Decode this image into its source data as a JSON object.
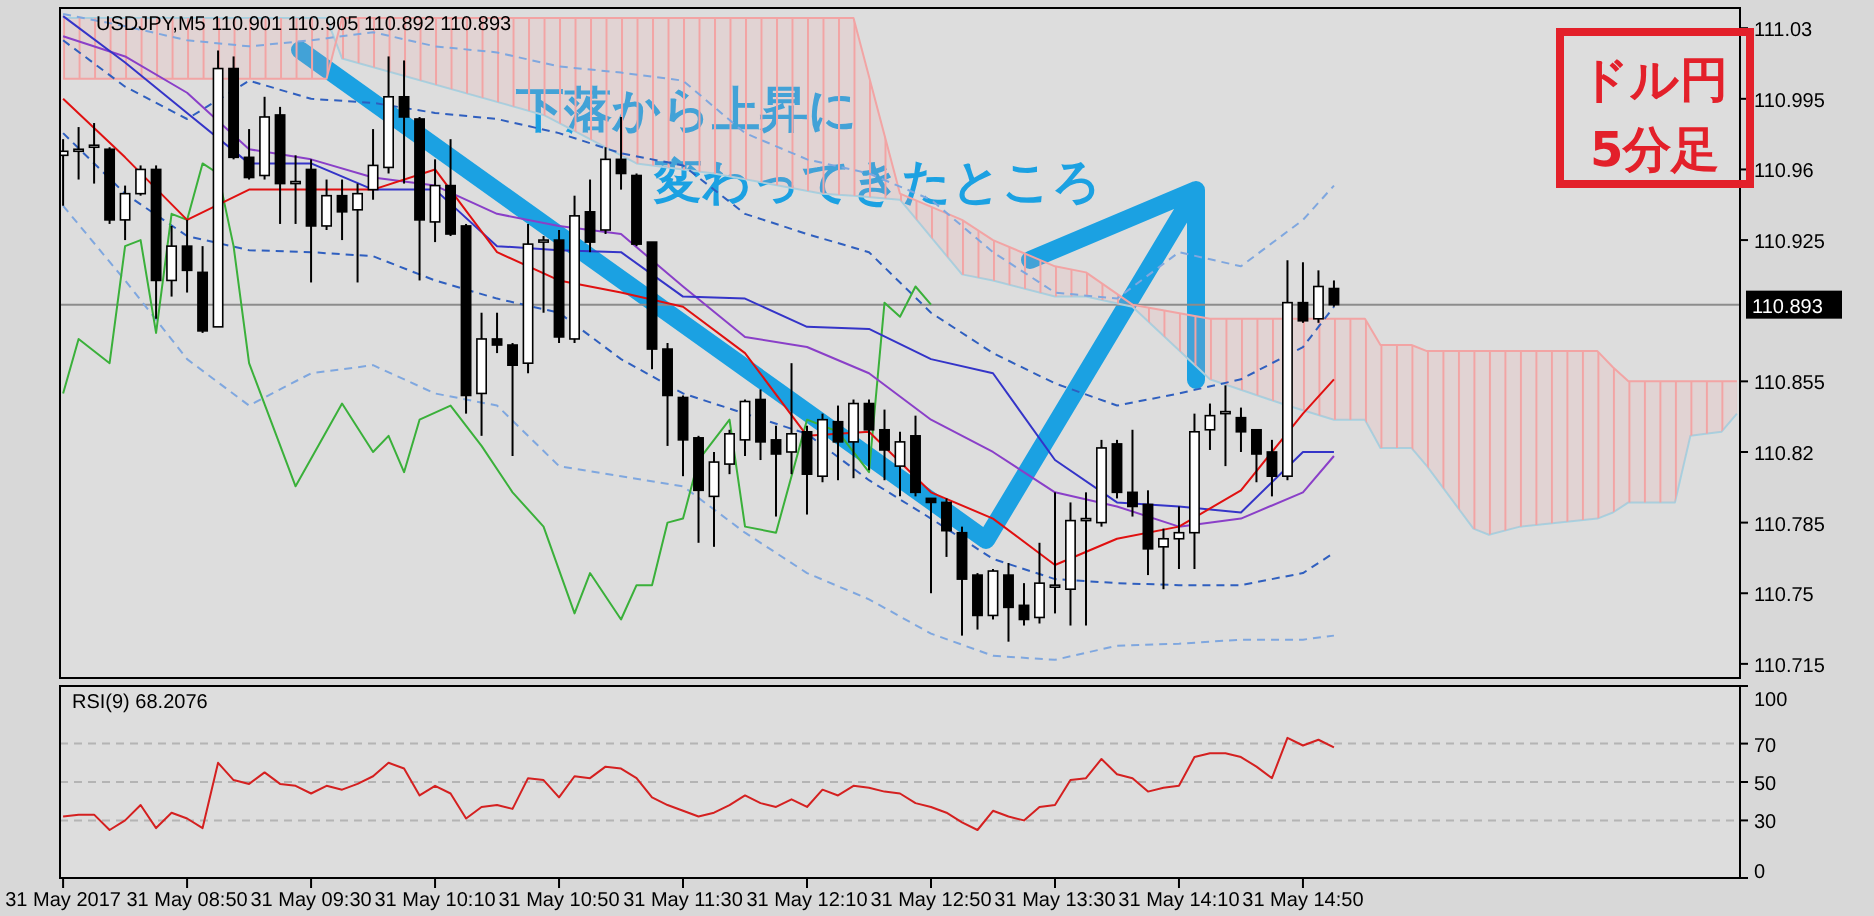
{
  "chart_data": [
    {
      "type": "candlestick",
      "title": "USDJPY,M5  110.901 110.905 110.892 110.893",
      "x": [
        "2017-05-31T08:10",
        "2017-05-31T08:15",
        "2017-05-31T08:20",
        "2017-05-31T08:25",
        "2017-05-31T08:30",
        "2017-05-31T08:35",
        "2017-05-31T08:40",
        "2017-05-31T08:45",
        "2017-05-31T08:50",
        "2017-05-31T08:55",
        "2017-05-31T09:00",
        "2017-05-31T09:05",
        "2017-05-31T09:10",
        "2017-05-31T09:15",
        "2017-05-31T09:20",
        "2017-05-31T09:25",
        "2017-05-31T09:30",
        "2017-05-31T09:35",
        "2017-05-31T09:40",
        "2017-05-31T09:45",
        "2017-05-31T09:50",
        "2017-05-31T09:55",
        "2017-05-31T10:00",
        "2017-05-31T10:05",
        "2017-05-31T10:10",
        "2017-05-31T10:15",
        "2017-05-31T10:20",
        "2017-05-31T10:25",
        "2017-05-31T10:30",
        "2017-05-31T10:35",
        "2017-05-31T10:40",
        "2017-05-31T10:45",
        "2017-05-31T10:50",
        "2017-05-31T10:55",
        "2017-05-31T11:00",
        "2017-05-31T11:05",
        "2017-05-31T11:10",
        "2017-05-31T11:15",
        "2017-05-31T11:20",
        "2017-05-31T11:25",
        "2017-05-31T11:30",
        "2017-05-31T11:35",
        "2017-05-31T11:40",
        "2017-05-31T11:45",
        "2017-05-31T11:50",
        "2017-05-31T11:55",
        "2017-05-31T12:00",
        "2017-05-31T12:05",
        "2017-05-31T12:10",
        "2017-05-31T12:15",
        "2017-05-31T12:20",
        "2017-05-31T12:25",
        "2017-05-31T12:30",
        "2017-05-31T12:35",
        "2017-05-31T12:40",
        "2017-05-31T12:45",
        "2017-05-31T12:50",
        "2017-05-31T12:55",
        "2017-05-31T13:00",
        "2017-05-31T13:05",
        "2017-05-31T13:10",
        "2017-05-31T13:15",
        "2017-05-31T13:20",
        "2017-05-31T13:25",
        "2017-05-31T13:30",
        "2017-05-31T13:35",
        "2017-05-31T13:40",
        "2017-05-31T13:45",
        "2017-05-31T13:50",
        "2017-05-31T13:55",
        "2017-05-31T14:00",
        "2017-05-31T14:05",
        "2017-05-31T14:10",
        "2017-05-31T14:15",
        "2017-05-31T14:20",
        "2017-05-31T14:25",
        "2017-05-31T14:30",
        "2017-05-31T14:35",
        "2017-05-31T14:40",
        "2017-05-31T14:45",
        "2017-05-31T14:50",
        "2017-05-31T14:55",
        "2017-05-31T15:00"
      ],
      "ohlc": [
        [
          110.967,
          110.975,
          110.942,
          110.969
        ],
        [
          110.969,
          110.981,
          110.955,
          110.97
        ],
        [
          110.971,
          110.983,
          110.953,
          110.972
        ],
        [
          110.97,
          110.971,
          110.933,
          110.935
        ],
        [
          110.935,
          110.952,
          110.925,
          110.948
        ],
        [
          110.948,
          110.962,
          110.947,
          110.96
        ],
        [
          110.96,
          110.962,
          110.886,
          110.905
        ],
        [
          110.905,
          110.932,
          110.897,
          110.922
        ],
        [
          110.922,
          110.935,
          110.899,
          110.91
        ],
        [
          110.909,
          110.922,
          110.879,
          110.88
        ],
        [
          110.882,
          111.019,
          110.882,
          111.01
        ],
        [
          111.01,
          111.016,
          110.965,
          110.966
        ],
        [
          110.966,
          110.98,
          110.955,
          110.956
        ],
        [
          110.957,
          110.996,
          110.955,
          110.986
        ],
        [
          110.987,
          110.991,
          110.933,
          110.953
        ],
        [
          110.953,
          110.967,
          110.933,
          110.954
        ],
        [
          110.96,
          110.965,
          110.904,
          110.932
        ],
        [
          110.932,
          110.955,
          110.93,
          110.947
        ],
        [
          110.947,
          110.955,
          110.925,
          110.939
        ],
        [
          110.94,
          110.953,
          110.904,
          110.948
        ],
        [
          110.95,
          110.98,
          110.945,
          110.962
        ],
        [
          110.961,
          111.016,
          110.958,
          110.996
        ],
        [
          110.996,
          111.014,
          110.953,
          110.986
        ],
        [
          110.985,
          110.986,
          110.905,
          110.935
        ],
        [
          110.934,
          110.965,
          110.924,
          110.952
        ],
        [
          110.952,
          110.975,
          110.927,
          110.928
        ],
        [
          110.932,
          110.933,
          110.839,
          110.848
        ],
        [
          110.849,
          110.889,
          110.828,
          110.876
        ],
        [
          110.876,
          110.889,
          110.869,
          110.873
        ],
        [
          110.873,
          110.874,
          110.818,
          110.863
        ],
        [
          110.864,
          110.933,
          110.859,
          110.923
        ],
        [
          110.924,
          110.927,
          110.889,
          110.925
        ],
        [
          110.925,
          110.93,
          110.874,
          110.877
        ],
        [
          110.876,
          110.947,
          110.874,
          110.937
        ],
        [
          110.939,
          110.955,
          110.919,
          110.924
        ],
        [
          110.93,
          110.971,
          110.928,
          110.965
        ],
        [
          110.965,
          110.986,
          110.95,
          110.958
        ],
        [
          110.957,
          110.958,
          110.922,
          110.923
        ],
        [
          110.924,
          110.924,
          110.861,
          110.871
        ],
        [
          110.871,
          110.874,
          110.823,
          110.848
        ],
        [
          110.847,
          110.848,
          110.808,
          110.826
        ],
        [
          110.827,
          110.828,
          110.775,
          110.801
        ],
        [
          110.798,
          110.82,
          110.773,
          110.815
        ],
        [
          110.814,
          110.831,
          110.809,
          110.829
        ],
        [
          110.826,
          110.846,
          110.818,
          110.845
        ],
        [
          110.846,
          110.851,
          110.816,
          110.825
        ],
        [
          110.826,
          110.833,
          110.788,
          110.819
        ],
        [
          110.82,
          110.864,
          110.809,
          110.829
        ],
        [
          110.83,
          110.833,
          110.789,
          110.809
        ],
        [
          110.808,
          110.839,
          110.805,
          110.836
        ],
        [
          110.835,
          110.843,
          110.806,
          110.825
        ],
        [
          110.825,
          110.846,
          110.807,
          110.844
        ],
        [
          110.844,
          110.846,
          110.811,
          110.831
        ],
        [
          110.831,
          110.841,
          110.806,
          110.821
        ],
        [
          110.813,
          110.83,
          110.798,
          110.825
        ],
        [
          110.828,
          110.838,
          110.798,
          110.8
        ],
        [
          110.797,
          110.797,
          110.75,
          110.795
        ],
        [
          110.795,
          110.797,
          110.768,
          110.781
        ],
        [
          110.78,
          110.783,
          110.729,
          110.757
        ],
        [
          110.759,
          110.76,
          110.732,
          110.739
        ],
        [
          110.739,
          110.762,
          110.737,
          110.761
        ],
        [
          110.759,
          110.765,
          110.726,
          110.743
        ],
        [
          110.744,
          110.755,
          110.734,
          110.737
        ],
        [
          110.738,
          110.775,
          110.735,
          110.755
        ],
        [
          110.753,
          110.8,
          110.74,
          110.754
        ],
        [
          110.752,
          110.795,
          110.734,
          110.786
        ],
        [
          110.786,
          110.8,
          110.734,
          110.787
        ],
        [
          110.785,
          110.826,
          110.783,
          110.822
        ],
        [
          110.824,
          110.826,
          110.797,
          110.8
        ],
        [
          110.8,
          110.831,
          110.788,
          110.793
        ],
        [
          110.794,
          110.801,
          110.759,
          110.772
        ],
        [
          110.773,
          110.782,
          110.752,
          110.777
        ],
        [
          110.777,
          110.793,
          110.762,
          110.78
        ],
        [
          110.78,
          110.839,
          110.762,
          110.83
        ],
        [
          110.831,
          110.844,
          110.821,
          110.838
        ],
        [
          110.839,
          110.853,
          110.813,
          110.84
        ],
        [
          110.837,
          110.842,
          110.82,
          110.83
        ],
        [
          110.831,
          110.831,
          110.805,
          110.819
        ],
        [
          110.82,
          110.826,
          110.798,
          110.808
        ],
        [
          110.808,
          110.915,
          110.806,
          110.894
        ],
        [
          110.894,
          110.914,
          110.884,
          110.885
        ],
        [
          110.886,
          110.91,
          110.884,
          110.902
        ],
        [
          110.901,
          110.905,
          110.892,
          110.893
        ]
      ],
      "series": [
        {
          "type": "line",
          "color": "#a4d2e2",
          "line_style": "solid",
          "x": [
            "2017-05-31T08:10",
            "2017-05-31T09:35",
            "2017-05-31T09:40",
            "2017-05-31T10:45",
            "2017-05-31T11:15",
            "2017-05-31T11:40",
            "2017-05-31T12:15",
            "2017-05-31T12:25",
            "2017-05-31T12:40",
            "2017-05-31T13:00",
            "2017-05-31T13:10",
            "2017-05-31T13:30",
            "2017-05-31T13:40",
            "2017-05-31T13:55",
            "2017-05-31T14:20",
            "2017-05-31T14:45",
            "2017-05-31T15:00",
            "2017-05-31T15:10",
            "2017-05-31T15:15",
            "2017-05-31T15:25",
            "2017-05-31T15:30",
            "2017-05-31T15:45",
            "2017-05-31T15:50",
            "2017-05-31T16:00",
            "2017-05-31T16:25",
            "2017-05-31T16:30",
            "2017-05-31T16:35",
            "2017-05-31T16:50",
            "2017-05-31T16:55",
            "2017-05-31T17:05",
            "2017-05-31T17:10"
          ],
          "values": [
            111.035,
            111.035,
            111.015,
            110.987,
            110.963,
            110.958,
            110.948,
            110.947,
            110.945,
            110.908,
            110.905,
            110.897,
            110.897,
            110.892,
            110.856,
            110.843,
            110.836,
            110.836,
            110.822,
            110.822,
            110.813,
            110.782,
            110.779,
            110.783,
            110.787,
            110.79,
            110.795,
            110.795,
            110.828,
            110.83,
            110.839
          ]
        },
        {
          "type": "line",
          "color": "#f2a4a4",
          "line_style": "solid",
          "x": [
            "2017-05-31T08:10",
            "2017-05-31T09:35",
            "2017-05-31T09:40",
            "2017-05-31T10:45",
            "2017-05-31T11:15",
            "2017-05-31T11:40",
            "2017-05-31T12:15",
            "2017-05-31T12:25",
            "2017-05-31T12:40",
            "2017-05-31T13:00",
            "2017-05-31T13:10",
            "2017-05-31T13:30",
            "2017-05-31T13:40",
            "2017-05-31T13:55",
            "2017-05-31T14:20",
            "2017-05-31T14:45",
            "2017-05-31T15:00",
            "2017-05-31T15:10",
            "2017-05-31T15:15",
            "2017-05-31T15:25",
            "2017-05-31T15:30",
            "2017-05-31T15:45",
            "2017-05-31T15:50",
            "2017-05-31T16:00",
            "2017-05-31T16:25",
            "2017-05-31T16:30",
            "2017-05-31T16:35",
            "2017-05-31T16:50",
            "2017-05-31T16:55",
            "2017-05-31T17:05",
            "2017-05-31T17:10"
          ],
          "values": [
            111.005,
            111.005,
            111.035,
            111.035,
            111.035,
            111.035,
            111.035,
            111.035,
            110.948,
            110.935,
            110.925,
            110.912,
            110.909,
            110.893,
            110.886,
            110.886,
            110.886,
            110.886,
            110.873,
            110.873,
            110.87,
            110.87,
            110.87,
            110.87,
            110.87,
            110.862,
            110.855,
            110.855,
            110.855,
            110.855,
            110.855
          ],
          "upper": [
            111.005,
            111.005,
            111.035,
            111.035,
            111.035,
            111.035,
            111.035,
            111.035,
            110.948,
            110.935,
            110.925,
            110.912,
            110.909,
            110.893,
            110.886,
            110.886,
            110.886,
            110.886,
            110.873,
            110.873,
            110.87,
            110.87,
            110.87,
            110.87,
            110.87,
            110.862,
            110.855,
            110.855,
            110.855,
            110.855,
            110.855
          ],
          "lower": [
            111.035,
            111.035,
            111.015,
            110.987,
            110.963,
            110.958,
            110.948,
            110.947,
            110.945,
            110.908,
            110.905,
            110.897,
            110.897,
            110.892,
            110.856,
            110.843,
            110.836,
            110.836,
            110.822,
            110.822,
            110.813,
            110.782,
            110.779,
            110.783,
            110.787,
            110.79,
            110.795,
            110.795,
            110.828,
            110.83,
            110.839
          ]
        },
        {
          "type": "line",
          "color": "#7fa7df",
          "line_style": "dashed",
          "x": [
            "2017-05-31T08:10",
            "2017-05-31T08:30",
            "2017-05-31T08:50",
            "2017-05-31T09:10",
            "2017-05-31T09:30",
            "2017-05-31T09:50",
            "2017-05-31T10:10",
            "2017-05-31T10:30",
            "2017-05-31T10:50",
            "2017-05-31T11:10",
            "2017-05-31T11:30",
            "2017-05-31T11:50",
            "2017-05-31T12:10",
            "2017-05-31T12:30",
            "2017-05-31T12:50",
            "2017-05-31T13:10",
            "2017-05-31T13:30",
            "2017-05-31T13:50",
            "2017-05-31T14:10",
            "2017-05-31T14:30",
            "2017-05-31T14:50",
            "2017-05-31T15:00"
          ],
          "values": [
            111.037,
            111.031,
            111.024,
            111.021,
            111.024,
            111.028,
            111.021,
            111.018,
            111.011,
            111.008,
            111.004,
            110.978,
            110.965,
            110.958,
            110.945,
            110.919,
            110.899,
            110.896,
            110.919,
            110.912,
            110.935,
            110.952
          ]
        },
        {
          "type": "line",
          "color": "#7fa7df",
          "line_style": "dashed",
          "x": [
            "2017-05-31T08:10",
            "2017-05-31T08:30",
            "2017-05-31T08:50",
            "2017-05-31T09:10",
            "2017-05-31T09:30",
            "2017-05-31T09:50",
            "2017-05-31T10:10",
            "2017-05-31T10:30",
            "2017-05-31T10:50",
            "2017-05-31T11:10",
            "2017-05-31T11:30",
            "2017-05-31T11:50",
            "2017-05-31T12:10",
            "2017-05-31T12:30",
            "2017-05-31T12:50",
            "2017-05-31T13:10",
            "2017-05-31T13:30",
            "2017-05-31T13:50",
            "2017-05-31T14:10",
            "2017-05-31T14:30",
            "2017-05-31T14:50",
            "2017-05-31T15:00"
          ],
          "values": [
            110.942,
            110.905,
            110.866,
            110.843,
            110.859,
            110.863,
            110.849,
            110.843,
            110.813,
            110.808,
            110.803,
            110.78,
            110.76,
            110.747,
            110.73,
            110.719,
            110.717,
            110.724,
            110.725,
            110.727,
            110.727,
            110.729
          ]
        },
        {
          "type": "line",
          "color": "#2f5fbf",
          "line_style": "dashed",
          "x": [
            "2017-05-31T08:10",
            "2017-05-31T08:30",
            "2017-05-31T08:50",
            "2017-05-31T09:10",
            "2017-05-31T09:30",
            "2017-05-31T09:50",
            "2017-05-31T10:10",
            "2017-05-31T10:30",
            "2017-05-31T10:50",
            "2017-05-31T11:10",
            "2017-05-31T11:30",
            "2017-05-31T11:50",
            "2017-05-31T12:10",
            "2017-05-31T12:30",
            "2017-05-31T12:50",
            "2017-05-31T13:10",
            "2017-05-31T13:30",
            "2017-05-31T13:50",
            "2017-05-31T14:10",
            "2017-05-31T14:30",
            "2017-05-31T14:50",
            "2017-05-31T15:00"
          ],
          "values": [
            111.024,
            111.001,
            110.985,
            111.004,
            110.995,
            110.993,
            110.988,
            110.985,
            110.978,
            110.968,
            110.962,
            110.938,
            110.928,
            110.919,
            110.889,
            110.869,
            110.854,
            110.843,
            110.849,
            110.856,
            110.872,
            110.892
          ]
        },
        {
          "type": "line",
          "color": "#2f5fbf",
          "line_style": "dashed",
          "x": [
            "2017-05-31T08:10",
            "2017-05-31T08:30",
            "2017-05-31T08:50",
            "2017-05-31T09:10",
            "2017-05-31T09:30",
            "2017-05-31T09:50",
            "2017-05-31T10:10",
            "2017-05-31T10:30",
            "2017-05-31T10:50",
            "2017-05-31T11:10",
            "2017-05-31T11:30",
            "2017-05-31T11:50",
            "2017-05-31T12:10",
            "2017-05-31T12:30",
            "2017-05-31T12:50",
            "2017-05-31T13:10",
            "2017-05-31T13:30",
            "2017-05-31T13:50",
            "2017-05-31T14:10",
            "2017-05-31T14:30",
            "2017-05-31T14:50",
            "2017-05-31T15:00"
          ],
          "values": [
            110.978,
            110.948,
            110.927,
            110.92,
            110.919,
            110.917,
            110.905,
            110.896,
            110.889,
            110.866,
            110.849,
            110.839,
            110.829,
            110.806,
            110.787,
            110.767,
            110.757,
            110.755,
            110.754,
            110.754,
            110.76,
            110.77
          ]
        },
        {
          "type": "line",
          "color": "#3ab03a",
          "line_style": "solid",
          "x": [
            "2017-05-31T08:10",
            "2017-05-31T08:15",
            "2017-05-31T08:25",
            "2017-05-31T08:30",
            "2017-05-31T08:35",
            "2017-05-31T08:40",
            "2017-05-31T08:45",
            "2017-05-31T08:50",
            "2017-05-31T08:55",
            "2017-05-31T09:00",
            "2017-05-31T09:05",
            "2017-05-31T09:10",
            "2017-05-31T09:25",
            "2017-05-31T09:40",
            "2017-05-31T09:50",
            "2017-05-31T09:55",
            "2017-05-31T10:00",
            "2017-05-31T10:05",
            "2017-05-31T10:15",
            "2017-05-31T10:25",
            "2017-05-31T10:35",
            "2017-05-31T10:45",
            "2017-05-31T10:55",
            "2017-05-31T11:00",
            "2017-05-31T11:10",
            "2017-05-31T11:15",
            "2017-05-31T11:20",
            "2017-05-31T11:25",
            "2017-05-31T11:30",
            "2017-05-31T11:35",
            "2017-05-31T11:40",
            "2017-05-31T11:45",
            "2017-05-31T11:50",
            "2017-05-31T12:00",
            "2017-05-31T12:10",
            "2017-05-31T12:20",
            "2017-05-31T12:30",
            "2017-05-31T12:35",
            "2017-05-31T12:40",
            "2017-05-31T12:45",
            "2017-05-31T12:50"
          ],
          "values": [
            110.849,
            110.876,
            110.864,
            110.922,
            110.925,
            110.879,
            110.938,
            110.935,
            110.963,
            110.958,
            110.922,
            110.864,
            110.803,
            110.844,
            110.82,
            110.828,
            110.81,
            110.836,
            110.843,
            110.823,
            110.8,
            110.783,
            110.74,
            110.76,
            110.737,
            110.754,
            110.754,
            110.785,
            110.787,
            110.816,
            110.826,
            110.836,
            110.783,
            110.78,
            110.836,
            110.83,
            110.81,
            110.894,
            110.887,
            110.902,
            110.893
          ]
        },
        {
          "type": "line",
          "color": "#8a3fc8",
          "line_style": "solid",
          "x": [
            "2017-05-31T08:10",
            "2017-05-31T08:30",
            "2017-05-31T08:50",
            "2017-05-31T09:10",
            "2017-05-31T09:30",
            "2017-05-31T09:50",
            "2017-05-31T10:10",
            "2017-05-31T10:30",
            "2017-05-31T10:50",
            "2017-05-31T11:10",
            "2017-05-31T11:30",
            "2017-05-31T11:50",
            "2017-05-31T12:10",
            "2017-05-31T12:30",
            "2017-05-31T12:50",
            "2017-05-31T13:10",
            "2017-05-31T13:30",
            "2017-05-31T13:50",
            "2017-05-31T14:10",
            "2017-05-31T14:30",
            "2017-05-31T14:50",
            "2017-05-31T15:00"
          ],
          "values": [
            111.026,
            111.016,
            110.998,
            110.97,
            110.965,
            110.956,
            110.952,
            110.938,
            110.932,
            110.928,
            110.902,
            110.877,
            110.872,
            110.859,
            110.836,
            110.82,
            110.8,
            110.793,
            110.783,
            110.787,
            110.8,
            110.818
          ]
        },
        {
          "type": "line",
          "color": "#3434c8",
          "line_style": "solid",
          "x": [
            "2017-05-31T08:10",
            "2017-05-31T08:30",
            "2017-05-31T08:50",
            "2017-05-31T09:10",
            "2017-05-31T09:30",
            "2017-05-31T09:50",
            "2017-05-31T10:10",
            "2017-05-31T10:30",
            "2017-05-31T10:50",
            "2017-05-31T11:10",
            "2017-05-31T11:30",
            "2017-05-31T11:50",
            "2017-05-31T12:10",
            "2017-05-31T12:30",
            "2017-05-31T12:50",
            "2017-05-31T13:10",
            "2017-05-31T13:30",
            "2017-05-31T13:50",
            "2017-05-31T14:10",
            "2017-05-31T14:30",
            "2017-05-31T14:50",
            "2017-05-31T15:00"
          ],
          "values": [
            111.036,
            111.013,
            110.988,
            110.963,
            110.963,
            110.95,
            110.95,
            110.922,
            110.92,
            110.919,
            110.897,
            110.896,
            110.882,
            110.881,
            110.866,
            110.859,
            110.816,
            110.795,
            110.793,
            110.79,
            110.82,
            110.82
          ]
        },
        {
          "type": "line",
          "color": "#e01010",
          "line_style": "solid",
          "x": [
            "2017-05-31T08:10",
            "2017-05-31T08:30",
            "2017-05-31T08:50",
            "2017-05-31T09:10",
            "2017-05-31T09:30",
            "2017-05-31T09:50",
            "2017-05-31T10:10",
            "2017-05-31T10:30",
            "2017-05-31T10:50",
            "2017-05-31T11:10",
            "2017-05-31T11:30",
            "2017-05-31T11:50",
            "2017-05-31T12:10",
            "2017-05-31T12:30",
            "2017-05-31T12:50",
            "2017-05-31T13:10",
            "2017-05-31T13:30",
            "2017-05-31T13:50",
            "2017-05-31T14:10",
            "2017-05-31T14:30",
            "2017-05-31T14:50",
            "2017-05-31T15:00"
          ],
          "values": [
            110.995,
            110.966,
            110.935,
            110.95,
            110.95,
            110.95,
            110.96,
            110.919,
            110.905,
            110.899,
            110.892,
            110.869,
            110.828,
            110.83,
            110.8,
            110.787,
            110.764,
            110.777,
            110.783,
            110.801,
            110.839,
            110.856
          ]
        }
      ],
      "xlim": [
        "2017-05-31T08:09",
        "2017-05-31T17:11"
      ],
      "ylim": [
        110.708,
        111.04
      ],
      "yticks": [
        110.715,
        110.75,
        110.785,
        110.82,
        110.855,
        110.925,
        110.96,
        110.995,
        111.03
      ],
      "ref_lines": [
        {
          "axis": "y",
          "value": 110.893,
          "label": "110.893",
          "color": "#8c8c8c"
        }
      ],
      "annotations": [
        "下落から上昇に",
        "変わってきたところ",
        "ドル円",
        "5分足"
      ],
      "tick_labels": "y"
    },
    {
      "type": "line",
      "title": "RSI(9) 68.2076",
      "x": [
        "2017-05-31T08:10",
        "2017-05-31T08:15",
        "2017-05-31T08:20",
        "2017-05-31T08:25",
        "2017-05-31T08:30",
        "2017-05-31T08:35",
        "2017-05-31T08:40",
        "2017-05-31T08:45",
        "2017-05-31T08:50",
        "2017-05-31T08:55",
        "2017-05-31T09:00",
        "2017-05-31T09:05",
        "2017-05-31T09:10",
        "2017-05-31T09:15",
        "2017-05-31T09:20",
        "2017-05-31T09:25",
        "2017-05-31T09:30",
        "2017-05-31T09:35",
        "2017-05-31T09:40",
        "2017-05-31T09:45",
        "2017-05-31T09:50",
        "2017-05-31T09:55",
        "2017-05-31T10:00",
        "2017-05-31T10:05",
        "2017-05-31T10:10",
        "2017-05-31T10:15",
        "2017-05-31T10:20",
        "2017-05-31T10:25",
        "2017-05-31T10:30",
        "2017-05-31T10:35",
        "2017-05-31T10:40",
        "2017-05-31T10:45",
        "2017-05-31T10:50",
        "2017-05-31T10:55",
        "2017-05-31T11:00",
        "2017-05-31T11:05",
        "2017-05-31T11:10",
        "2017-05-31T11:15",
        "2017-05-31T11:20",
        "2017-05-31T11:25",
        "2017-05-31T11:30",
        "2017-05-31T11:35",
        "2017-05-31T11:40",
        "2017-05-31T11:45",
        "2017-05-31T11:50",
        "2017-05-31T11:55",
        "2017-05-31T12:00",
        "2017-05-31T12:05",
        "2017-05-31T12:10",
        "2017-05-31T12:15",
        "2017-05-31T12:20",
        "2017-05-31T12:25",
        "2017-05-31T12:30",
        "2017-05-31T12:35",
        "2017-05-31T12:40",
        "2017-05-31T12:45",
        "2017-05-31T12:50",
        "2017-05-31T12:55",
        "2017-05-31T13:00",
        "2017-05-31T13:05",
        "2017-05-31T13:10",
        "2017-05-31T13:15",
        "2017-05-31T13:20",
        "2017-05-31T13:25",
        "2017-05-31T13:30",
        "2017-05-31T13:35",
        "2017-05-31T13:40",
        "2017-05-31T13:45",
        "2017-05-31T13:50",
        "2017-05-31T13:55",
        "2017-05-31T14:00",
        "2017-05-31T14:05",
        "2017-05-31T14:10",
        "2017-05-31T14:15",
        "2017-05-31T14:20",
        "2017-05-31T14:25",
        "2017-05-31T14:30",
        "2017-05-31T14:35",
        "2017-05-31T14:40",
        "2017-05-31T14:45",
        "2017-05-31T14:50",
        "2017-05-31T14:55",
        "2017-05-31T15:00"
      ],
      "series": [
        {
          "color": "#d42020",
          "values": [
            32,
            33,
            33,
            25,
            30,
            38,
            26,
            34,
            31,
            26,
            60,
            51,
            49,
            55,
            49,
            48,
            44,
            48,
            46,
            49,
            53,
            60,
            57,
            43,
            48,
            44,
            31,
            37,
            38,
            36,
            52,
            51,
            42,
            53,
            52,
            58,
            57,
            52,
            42,
            38,
            35,
            32,
            34,
            38,
            43,
            39,
            37,
            41,
            37,
            46,
            43,
            48,
            47,
            45,
            44,
            39,
            37,
            34,
            29,
            25,
            35,
            32,
            30,
            37,
            38,
            51,
            52,
            62,
            54,
            52,
            45,
            47,
            48,
            63,
            65,
            65,
            63,
            58,
            52,
            73,
            69,
            72,
            68
          ]
        }
      ],
      "xlim": [
        "2017-05-31T08:09",
        "2017-05-31T17:11"
      ],
      "ylim": [
        0,
        100
      ],
      "yticks": [
        0,
        30,
        50,
        70,
        100
      ],
      "xticks": [
        {
          "value": "2017-05-31T08:10",
          "label": "31 May 2017"
        },
        {
          "value": "2017-05-31T08:50",
          "label": "31 May 08:50"
        },
        {
          "value": "2017-05-31T09:30",
          "label": "31 May 09:30"
        },
        {
          "value": "2017-05-31T10:10",
          "label": "31 May 10:10"
        },
        {
          "value": "2017-05-31T10:50",
          "label": "31 May 10:50"
        },
        {
          "value": "2017-05-31T11:30",
          "label": "31 May 11:30"
        },
        {
          "value": "2017-05-31T12:10",
          "label": "31 May 12:10"
        },
        {
          "value": "2017-05-31T12:50",
          "label": "31 May 12:50"
        },
        {
          "value": "2017-05-31T13:30",
          "label": "31 May 13:30"
        },
        {
          "value": "2017-05-31T14:10",
          "label": "31 May 14:10"
        },
        {
          "value": "2017-05-31T14:50",
          "label": "31 May 14:50"
        }
      ],
      "ref_lines": [
        {
          "axis": "y",
          "value": 30,
          "color": "#b4b4b4",
          "line_style": "dashed"
        },
        {
          "axis": "y",
          "value": 50,
          "color": "#b4b4b4",
          "line_style": "dashed"
        },
        {
          "axis": "y",
          "value": 70,
          "color": "#b4b4b4",
          "line_style": "dashed"
        }
      ]
    }
  ]
}
